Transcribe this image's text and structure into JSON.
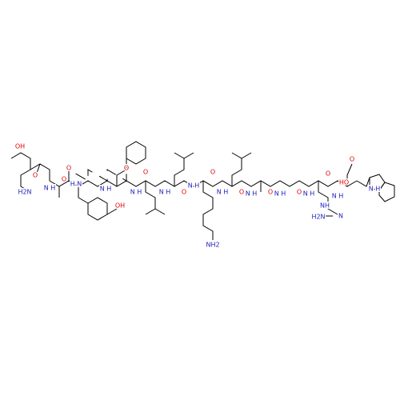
{
  "atoms": [
    {
      "label": "OH"
    },
    {
      "label": "H2N"
    },
    {
      "label": "O"
    },
    {
      "label": "N\nH"
    },
    {
      "label": "O"
    },
    {
      "label": "H\nN"
    },
    {
      "label": "O"
    },
    {
      "label": "N\nH"
    },
    {
      "label": "OH"
    },
    {
      "label": "O"
    },
    {
      "label": "N\nH"
    },
    {
      "label": "O"
    },
    {
      "label": "N\nH"
    },
    {
      "label": "O"
    },
    {
      "label": "N\nH"
    },
    {
      "label": "O"
    },
    {
      "label": "NH2"
    },
    {
      "label": "N\nH"
    },
    {
      "label": "O"
    },
    {
      "label": "N\nH"
    },
    {
      "label": "O"
    },
    {
      "label": "N\nH"
    },
    {
      "label": "O"
    },
    {
      "label": "N\nH"
    },
    {
      "label": "O"
    },
    {
      "label": "N\nH"
    },
    {
      "label": "O"
    },
    {
      "label": "HO"
    },
    {
      "label": "N\nH"
    },
    {
      "label": "NH"
    },
    {
      "label": "H2N"
    },
    {
      "label": "N"
    }
  ]
}
